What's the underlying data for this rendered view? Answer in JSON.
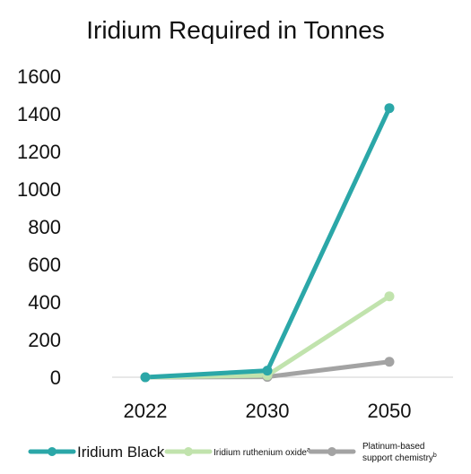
{
  "chart_data": {
    "type": "line",
    "title": "Iridium Required in Tonnes",
    "xlabel": "",
    "ylabel": "",
    "categories": [
      "2022",
      "2030",
      "2050"
    ],
    "ylim": [
      0,
      1600
    ],
    "yticks": [
      "0",
      "200",
      "400",
      "600",
      "800",
      "1000",
      "1200",
      "1400",
      "1600"
    ],
    "grid": false,
    "legend_position": "bottom",
    "series": [
      {
        "name": "Iridium Black",
        "values": [
          0,
          35,
          1430
        ],
        "color": "#2ba7a8"
      },
      {
        "name": "Iridium ruthenium oxide",
        "superscript": "a",
        "values": [
          0,
          10,
          430
        ],
        "color": "#c1e3ad"
      },
      {
        "name": "Platinum-based support chemistry",
        "name_line1": "Platinum-based",
        "name_line2": "support chemistry",
        "superscript": "b",
        "values": [
          0,
          2,
          82
        ],
        "color": "#a3a3a3"
      }
    ]
  }
}
